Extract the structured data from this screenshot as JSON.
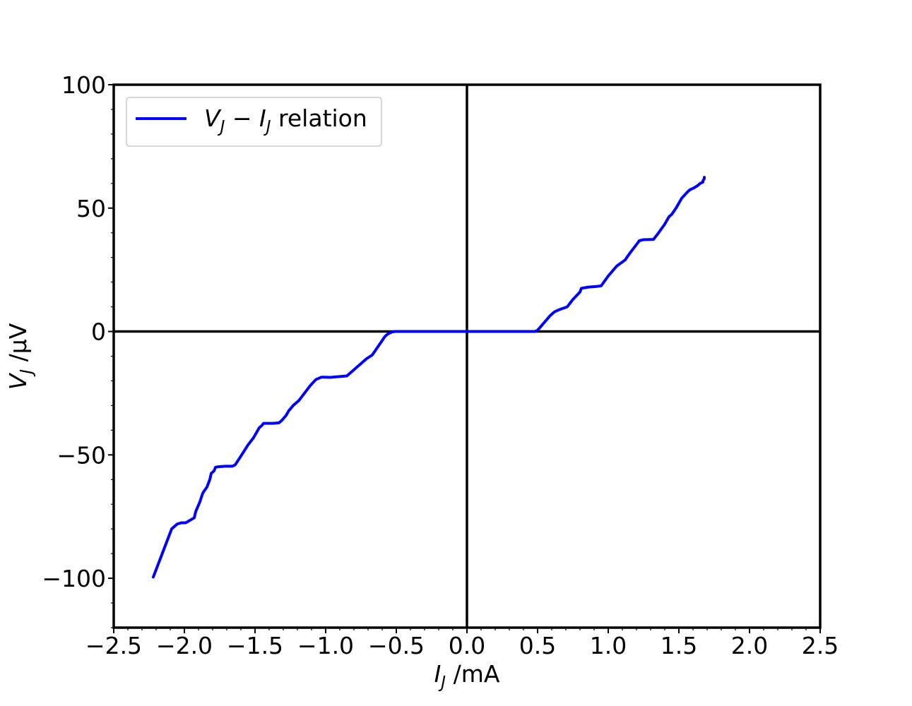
{
  "chart_data": {
    "type": "line",
    "title": "",
    "xlabel": {
      "var": "I",
      "sub": "J",
      "unit": " /mA"
    },
    "ylabel": {
      "var": "V",
      "sub": "J",
      "unit": " /μV"
    },
    "xlim": [
      -2.5,
      2.5
    ],
    "ylim": [
      -120,
      100
    ],
    "x_ticks": [
      -2.5,
      -2.0,
      -1.5,
      -1.0,
      -0.5,
      0.0,
      0.5,
      1.0,
      1.5,
      2.0,
      2.5
    ],
    "x_tick_labels": [
      "−2.5",
      "−2.0",
      "−1.5",
      "−1.0",
      "−0.5",
      "0.0",
      "0.5",
      "1.0",
      "1.5",
      "2.0",
      "2.5"
    ],
    "y_ticks": [
      -100,
      -50,
      0,
      50,
      100
    ],
    "y_tick_labels": [
      "−100",
      "−50",
      "0",
      "50",
      "100"
    ],
    "grid": false,
    "zero_lines": true,
    "legend": {
      "placement": "top-left",
      "entries": [
        {
          "parts": [
            {
              "t": "V",
              "italic": true
            },
            {
              "t": "J",
              "italic": true,
              "sub": true
            },
            {
              "t": " − "
            },
            {
              "t": "I",
              "italic": true
            },
            {
              "t": "J",
              "italic": true,
              "sub": true
            },
            {
              "t": " relation"
            }
          ]
        }
      ]
    },
    "series": [
      {
        "color": "#0000ff",
        "x": [
          -2.22,
          -2.15,
          -2.09,
          -2.05,
          -2.02,
          -1.99,
          -1.96,
          -1.93,
          -1.92,
          -1.89,
          -1.87,
          -1.84,
          -1.82,
          -1.81,
          -1.79,
          -1.78,
          -1.76,
          -1.71,
          -1.66,
          -1.64,
          -1.6,
          -1.55,
          -1.51,
          -1.49,
          -1.47,
          -1.45,
          -1.44,
          -1.42,
          -1.37,
          -1.33,
          -1.31,
          -1.28,
          -1.26,
          -1.23,
          -1.19,
          -1.15,
          -1.11,
          -1.07,
          -1.03,
          -1.01,
          -0.97,
          -0.91,
          -0.85,
          -0.83,
          -0.79,
          -0.75,
          -0.71,
          -0.67,
          -0.64,
          -0.61,
          -0.58,
          -0.56,
          -0.53,
          -0.51,
          -0.3,
          0.0,
          0.3,
          0.48,
          0.5,
          0.53,
          0.56,
          0.59,
          0.62,
          0.66,
          0.71,
          0.75,
          0.8,
          0.81,
          0.86,
          0.91,
          0.95,
          1.0,
          1.06,
          1.12,
          1.15,
          1.19,
          1.21,
          1.22,
          1.25,
          1.32,
          1.35,
          1.4,
          1.43,
          1.45,
          1.48,
          1.52,
          1.56,
          1.58,
          1.6,
          1.61,
          1.63,
          1.65,
          1.67,
          1.67,
          1.68,
          1.68
        ],
        "y": [
          -99.5,
          -89.0,
          -80.0,
          -78.0,
          -77.5,
          -77.5,
          -76.5,
          -75.5,
          -73.0,
          -69.0,
          -65.5,
          -63.0,
          -60.0,
          -57.5,
          -56.5,
          -55.0,
          -54.8,
          -54.6,
          -54.6,
          -54.0,
          -50.5,
          -46.0,
          -43.0,
          -41.0,
          -39.0,
          -38.0,
          -37.2,
          -37.2,
          -37.2,
          -37.0,
          -36.0,
          -34.0,
          -32.0,
          -30.0,
          -28.0,
          -25.0,
          -22.0,
          -19.5,
          -18.5,
          -18.5,
          -18.6,
          -18.3,
          -18.0,
          -17.0,
          -15.0,
          -13.0,
          -11.0,
          -9.5,
          -7.0,
          -4.5,
          -2.0,
          -1.0,
          -0.2,
          0.0,
          0.0,
          0.0,
          0.0,
          0.0,
          0.5,
          2.5,
          4.5,
          6.5,
          8.0,
          9.0,
          10.0,
          13.0,
          16.0,
          17.5,
          18.0,
          18.2,
          18.5,
          22.5,
          26.5,
          29.0,
          31.5,
          34.5,
          36.0,
          36.8,
          37.2,
          37.3,
          39.5,
          43.5,
          46.5,
          47.5,
          50.0,
          54.0,
          56.5,
          57.5,
          58.0,
          58.3,
          59.0,
          60.0,
          60.5,
          61.0,
          62.0,
          62.5
        ]
      }
    ]
  }
}
